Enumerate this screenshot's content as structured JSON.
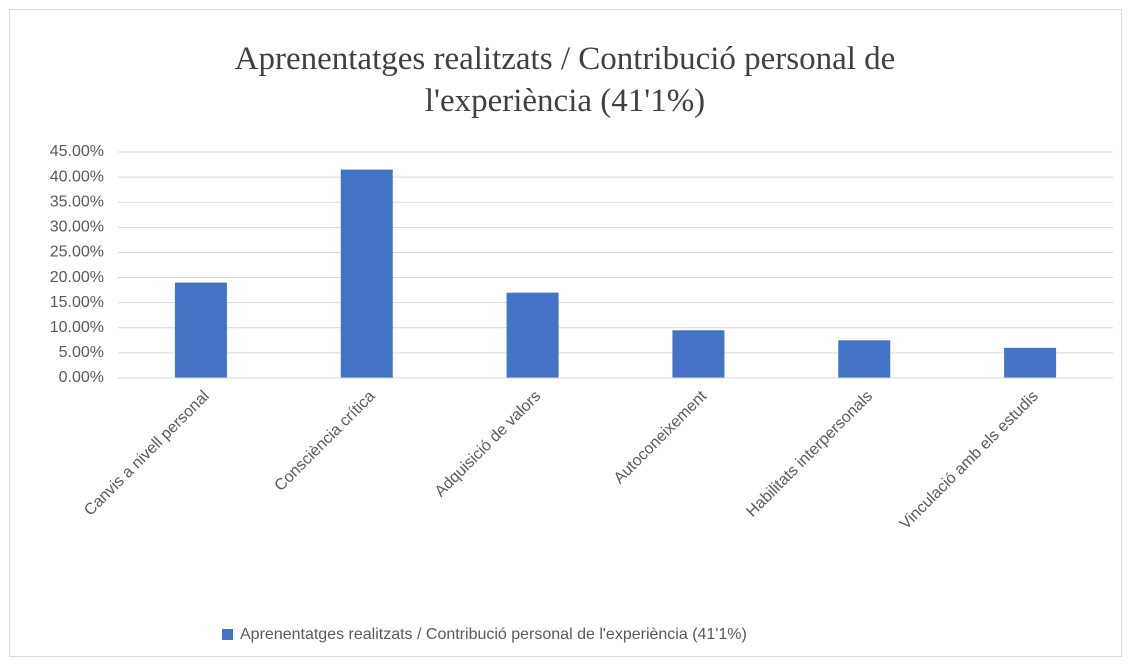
{
  "chart_data": {
    "type": "bar",
    "title": "Aprenentatges realitzats / Contribució personal de l'experiència (41'1%)",
    "categories": [
      "Canvis a nivell personal",
      "Consciència crítica",
      "Adquisició de valors",
      "Autoconeixement",
      "Habilitats interpersonals",
      "Vinculació amb els estudis"
    ],
    "series": [
      {
        "name": "Aprenentatges realitzats / Contribució personal de l'experiència (41'1%)",
        "color": "#4472c4",
        "values": [
          19,
          41.5,
          17,
          9.5,
          7.5,
          6
        ]
      }
    ],
    "ylim": [
      0,
      45
    ],
    "yticks": [
      {
        "value": 0,
        "label": "0.00%"
      },
      {
        "value": 5,
        "label": "5.00%"
      },
      {
        "value": 10,
        "label": "10.00%"
      },
      {
        "value": 15,
        "label": "15.00%"
      },
      {
        "value": 20,
        "label": "20.00%"
      },
      {
        "value": 25,
        "label": "25.00%"
      },
      {
        "value": 30,
        "label": "30.00%"
      },
      {
        "value": 35,
        "label": "35.00%"
      },
      {
        "value": 40,
        "label": "40.00%"
      },
      {
        "value": 45,
        "label": "45.00%"
      }
    ],
    "grid": true,
    "legend": "bottom"
  }
}
